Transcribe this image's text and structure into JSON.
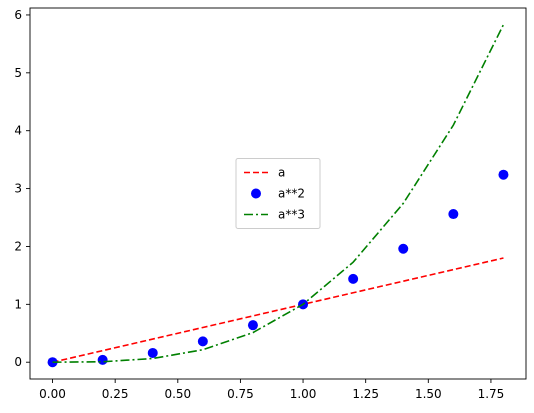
{
  "chart_data": {
    "type": "line",
    "title": "",
    "xlabel": "",
    "ylabel": "",
    "x": [
      0.0,
      0.2,
      0.4,
      0.6,
      0.8,
      1.0,
      1.2,
      1.4,
      1.6,
      1.8
    ],
    "xlim": [
      -0.09,
      1.89
    ],
    "ylim": [
      -0.29,
      6.12
    ],
    "xticks": [
      "0.00",
      "0.25",
      "0.50",
      "0.75",
      "1.00",
      "1.25",
      "1.50",
      "1.75"
    ],
    "yticks": [
      "0",
      "1",
      "2",
      "3",
      "4",
      "5",
      "6"
    ],
    "grid": false,
    "legend": "center",
    "series": [
      {
        "name": "a",
        "style": "dashed",
        "color": "#ff0000",
        "values": [
          0.0,
          0.2,
          0.4,
          0.6,
          0.8,
          1.0,
          1.2,
          1.4,
          1.6,
          1.8
        ]
      },
      {
        "name": "a**2",
        "style": "markers",
        "color": "#0000ff",
        "values": [
          0.0,
          0.04,
          0.16,
          0.36,
          0.64,
          1.0,
          1.44,
          1.96,
          2.56,
          3.24
        ]
      },
      {
        "name": "a**3",
        "style": "dashdot",
        "color": "#008000",
        "values": [
          0.0,
          0.008,
          0.064,
          0.216,
          0.512,
          1.0,
          1.728,
          2.744,
          4.096,
          5.832
        ]
      }
    ]
  }
}
